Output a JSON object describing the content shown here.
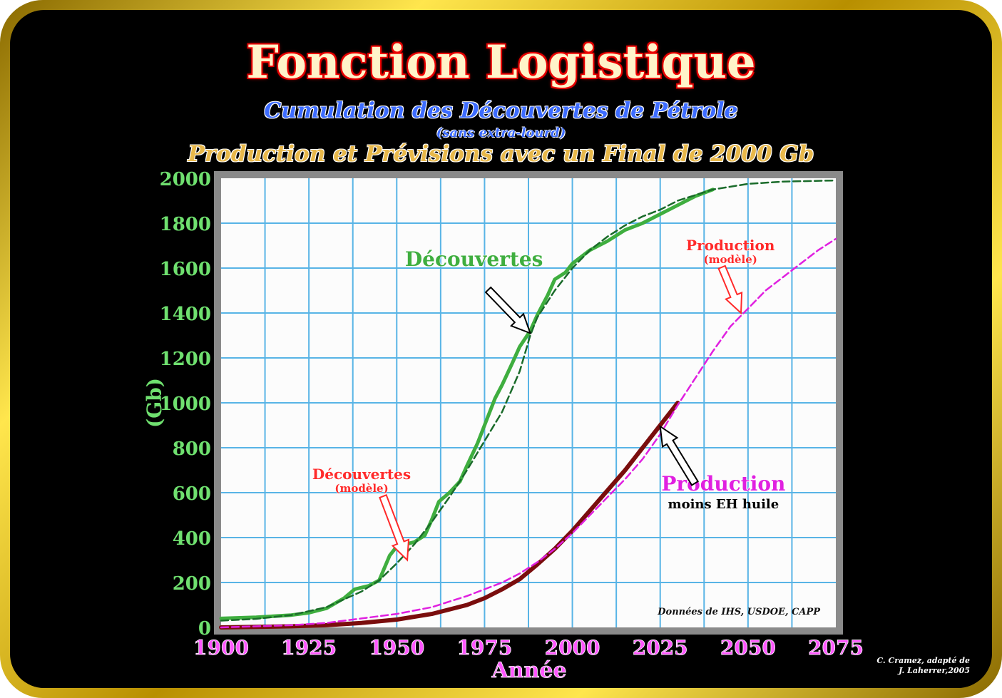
{
  "header": {
    "title": "Fonction Logistique",
    "subtitle_discoveries": "Cumulation des Découvertes de Pétrole",
    "subtitle_note": "(sans extra-lourd)",
    "subtitle_production": "Production et Prévisions avec un Final de 2000 Gb"
  },
  "credit": {
    "line1": "C. Cramez, adapté de",
    "line2": "J. Laherrer,2005"
  },
  "colors": {
    "discoveries": "#3fae3f",
    "discoveries_model": "#1a6b2a",
    "production": "#7a0d0d",
    "production_model": "#e020e0",
    "grid": "#58b4e6",
    "plot_bg": "#fcfcfc",
    "plot_border": "#8a8a8a",
    "y_ticks": "#6fe06f",
    "x_ticks": "#ff55ff",
    "annotation_red": "#ff2a2a"
  },
  "chart_data": {
    "type": "line",
    "xlabel": "Année",
    "ylabel": "(Gb)",
    "xlim": [
      1900,
      2075
    ],
    "ylim": [
      0,
      2000
    ],
    "x_ticks": [
      1900,
      1925,
      1950,
      1975,
      2000,
      2025,
      2050,
      2075
    ],
    "y_ticks": [
      0,
      200,
      400,
      600,
      800,
      1000,
      1200,
      1400,
      1600,
      1800,
      2000
    ],
    "grid": true,
    "series": [
      {
        "name": "Découvertes",
        "style": "solid",
        "x": [
          1900,
          1910,
          1920,
          1925,
          1930,
          1935,
          1938,
          1942,
          1945,
          1948,
          1950,
          1955,
          1958,
          1960,
          1962,
          1965,
          1968,
          1970,
          1973,
          1975,
          1978,
          1980,
          1983,
          1985,
          1988,
          1990,
          1993,
          1995,
          1998,
          2000,
          2005,
          2010,
          2015,
          2020,
          2025,
          2030,
          2035,
          2040
        ],
        "y": [
          40,
          45,
          55,
          65,
          85,
          130,
          170,
          185,
          210,
          320,
          360,
          380,
          410,
          480,
          560,
          600,
          650,
          720,
          820,
          900,
          1020,
          1080,
          1180,
          1250,
          1320,
          1390,
          1480,
          1550,
          1580,
          1620,
          1680,
          1720,
          1770,
          1800,
          1840,
          1880,
          1920,
          1950
        ]
      },
      {
        "name": "Découvertes (modèle)",
        "style": "dashed",
        "x": [
          1900,
          1910,
          1920,
          1930,
          1940,
          1945,
          1950,
          1955,
          1960,
          1965,
          1970,
          1975,
          1980,
          1985,
          1988,
          1990,
          1995,
          2000,
          2005,
          2010,
          2015,
          2020,
          2025,
          2030,
          2040,
          2050,
          2060,
          2075
        ],
        "y": [
          30,
          38,
          55,
          90,
          160,
          210,
          285,
          370,
          470,
          580,
          700,
          830,
          960,
          1140,
          1300,
          1380,
          1500,
          1600,
          1680,
          1740,
          1790,
          1830,
          1860,
          1900,
          1950,
          1975,
          1985,
          1990
        ]
      },
      {
        "name": "Production",
        "style": "solid",
        "x": [
          1900,
          1920,
          1930,
          1940,
          1950,
          1960,
          1970,
          1975,
          1980,
          1985,
          1990,
          1995,
          2000,
          2005,
          2010,
          2015,
          2020,
          2025,
          2030
        ],
        "y": [
          0,
          5,
          10,
          20,
          35,
          60,
          100,
          130,
          170,
          215,
          280,
          350,
          430,
          520,
          610,
          700,
          800,
          900,
          1000
        ]
      },
      {
        "name": "Production (modèle)",
        "style": "dashed",
        "x": [
          1900,
          1920,
          1930,
          1940,
          1950,
          1960,
          1970,
          1975,
          1980,
          1985,
          1990,
          1995,
          2000,
          2005,
          2010,
          2015,
          2020,
          2025,
          2030,
          2035,
          2040,
          2045,
          2050,
          2055,
          2060,
          2065,
          2070,
          2075
        ],
        "y": [
          0,
          10,
          20,
          40,
          60,
          90,
          140,
          170,
          200,
          240,
          290,
          350,
          420,
          500,
          580,
          660,
          750,
          860,
          990,
          1110,
          1230,
          1340,
          1420,
          1500,
          1560,
          1620,
          1680,
          1730
        ]
      }
    ],
    "annotations": [
      {
        "text": "Découvertes",
        "note": "",
        "x": 1972,
        "y": 1610,
        "arrow_to": [
          1988,
          1310
        ]
      },
      {
        "text": "Production",
        "note": "(modèle)",
        "x": 2045,
        "y": 1680,
        "arrow_to": [
          2048,
          1400
        ]
      },
      {
        "text": "Découvertes",
        "note": "(modèle)",
        "x": 1940,
        "y": 660,
        "arrow_to": [
          1953,
          300
        ]
      },
      {
        "text": "Production",
        "note": "moins EH huile",
        "x": 2043,
        "y": 610,
        "arrow_to": [
          2025,
          895
        ]
      }
    ],
    "source_note": "Données de IHS, USDOE, CAPP"
  }
}
